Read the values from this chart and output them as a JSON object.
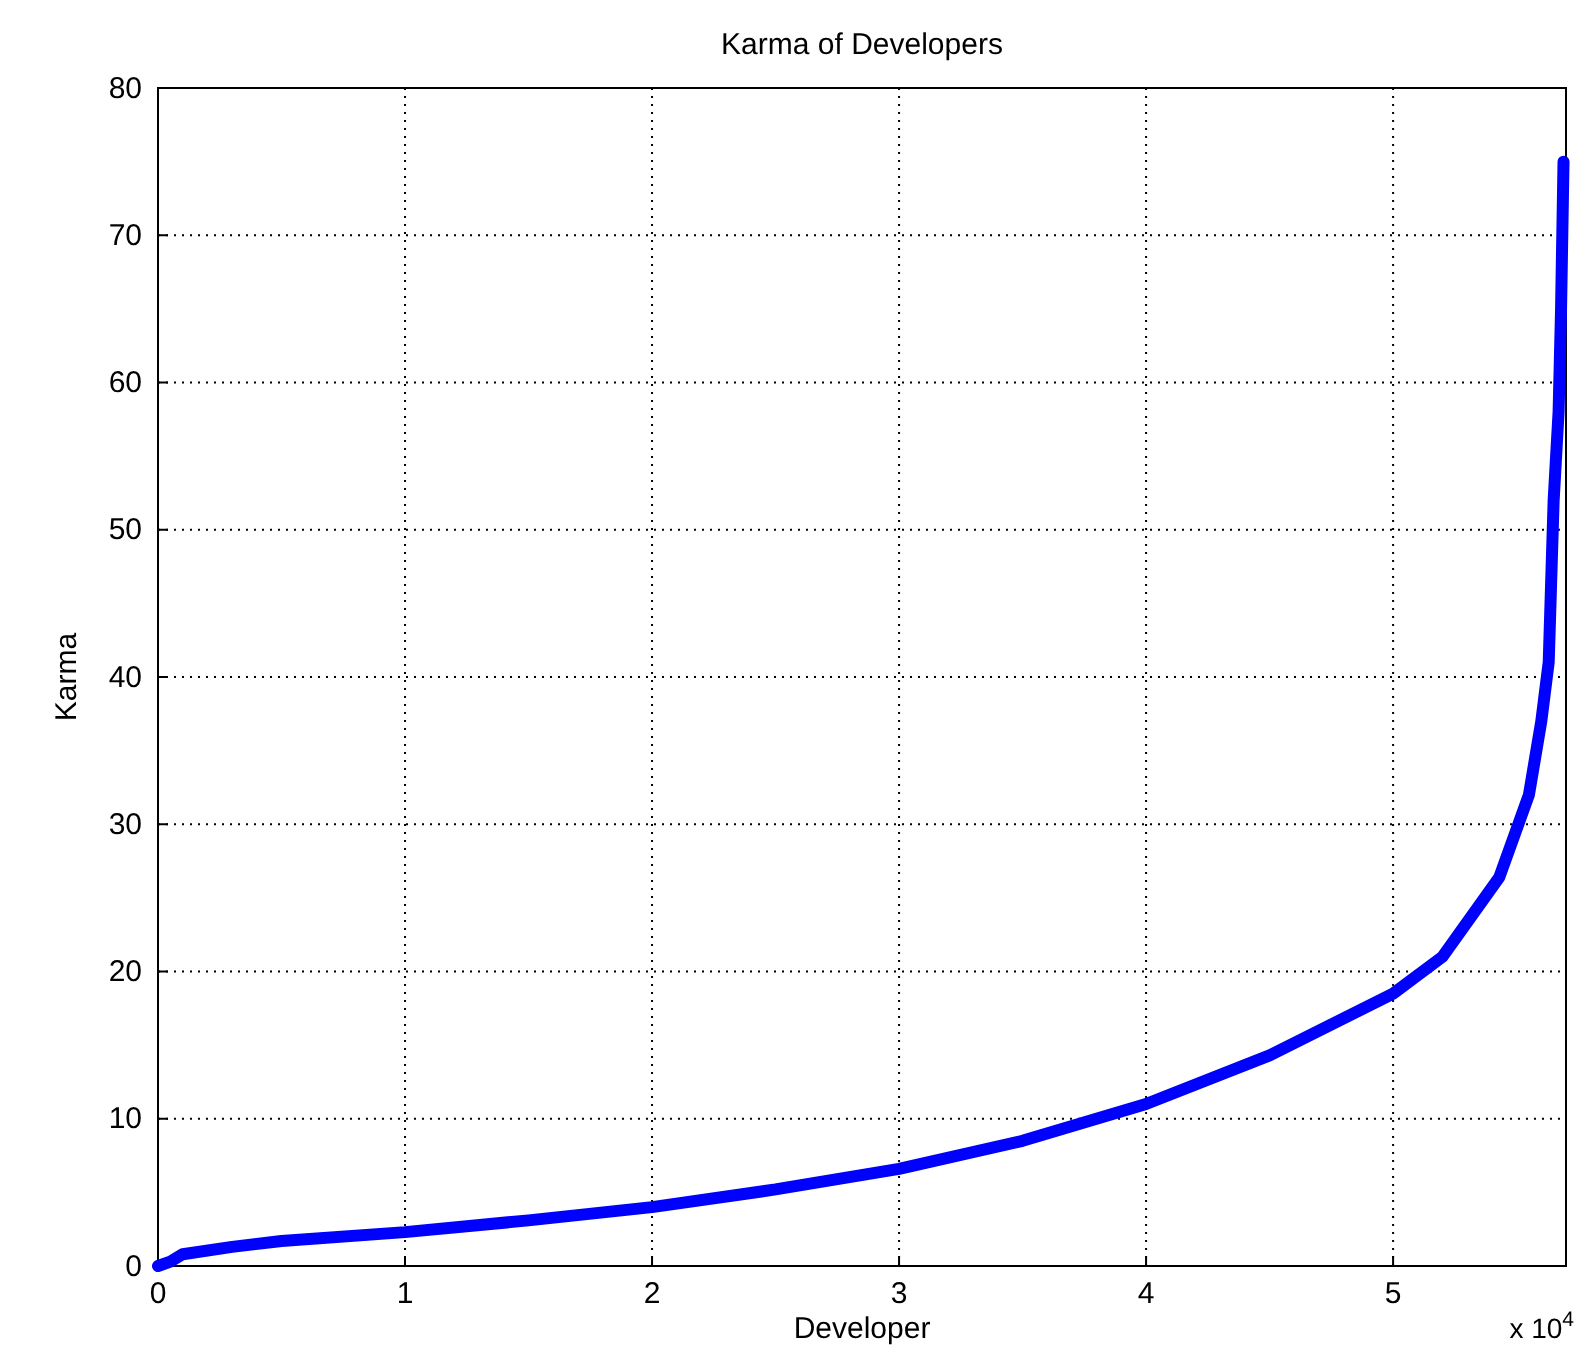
{
  "chart_data": {
    "type": "line",
    "title": "Karma of Developers",
    "xlabel": "Developer",
    "ylabel": "Karma",
    "annotations": [
      "x 10$^{4}$"
    ],
    "x": [
      0,
      0.05,
      0.1,
      0.3,
      0.5,
      1,
      1.5,
      2,
      2.5,
      3,
      3.5,
      4,
      4.5,
      5,
      5.2,
      5.43,
      5.55,
      5.6,
      5.63,
      5.65,
      5.67,
      5.68,
      5.69
    ],
    "series": [
      {
        "color": "#0000ff",
        "values": [
          0,
          0.3,
          0.8,
          1.3,
          1.7,
          2.3,
          3.1,
          4.0,
          5.2,
          6.6,
          8.5,
          11,
          14.3,
          18.5,
          21,
          26.4,
          32,
          37,
          41,
          52,
          58,
          65,
          75
        ]
      }
    ],
    "xlim": [
      0,
      5.7
    ],
    "ylim": [
      0,
      80
    ],
    "xticks": [
      0,
      1,
      2,
      3,
      4,
      5
    ],
    "yticks": [
      0,
      10,
      20,
      30,
      40,
      50,
      60,
      70,
      80
    ],
    "grid": true,
    "line_style": "solid",
    "marker": "none"
  }
}
